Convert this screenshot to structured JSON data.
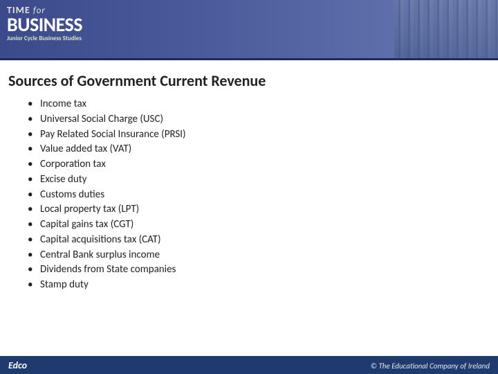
{
  "banner": {
    "logo_line1_a": "TIME",
    "logo_line1_b": "for",
    "logo_line2": "BUSINESS",
    "logo_sub": "Junior Cycle Business Studies",
    "bg_gradient": [
      "#3a4a8a",
      "#4a5a9a",
      "#5a6aa8",
      "#6a7ab0"
    ],
    "rule_color": "#1a2a5a"
  },
  "title": "Sources of Government Current Revenue",
  "title_fontsize": 22,
  "title_color": "#222222",
  "bullets": {
    "items": [
      "Income tax",
      "Universal Social Charge (USC)",
      "Pay Related Social Insurance (PRSI)",
      "Value added tax (VAT)",
      "Corporation tax",
      "Excise duty",
      "Customs duties",
      "Local property tax (LPT)",
      "Capital gains tax (CGT)",
      "Capital acquisitions tax (CAT)",
      "Central Bank surplus income",
      "Dividends from State companies",
      "Stamp duty"
    ],
    "fontsize": 15,
    "color": "#222222",
    "marker": "•"
  },
  "footer": {
    "left": "Edco",
    "right": "© The Educational Company of Ireland",
    "bg_color": "#1f3a6e",
    "text_color": "#ffffff"
  }
}
